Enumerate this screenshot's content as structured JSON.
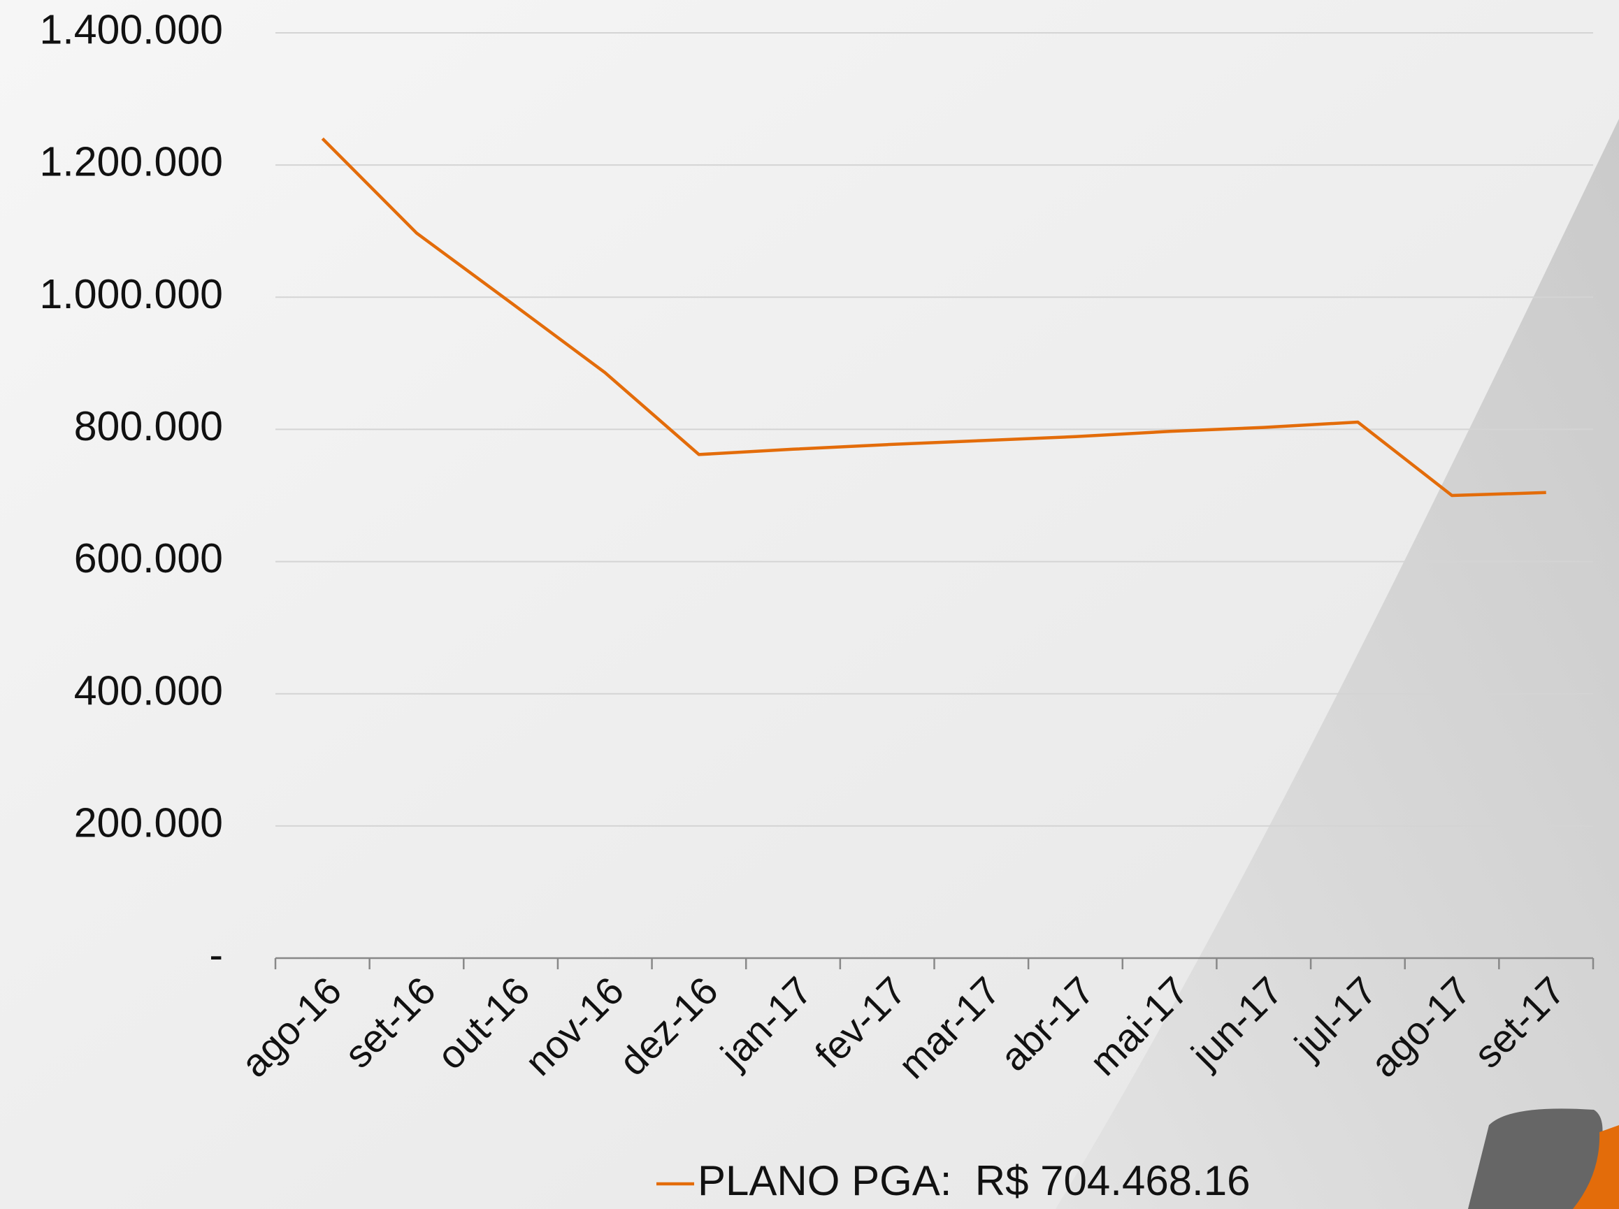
{
  "chart_data": {
    "type": "line",
    "categories": [
      "ago-16",
      "set-16",
      "out-16",
      "nov-16",
      "dez-16",
      "jan-17",
      "fev-17",
      "mar-17",
      "abr-17",
      "mai-17",
      "jun-17",
      "jul-17",
      "ago-17",
      "set-17"
    ],
    "series": [
      {
        "name": "PLANO PGA:  R$ 704.468.16",
        "color": "#e36c0a",
        "values": [
          1240000,
          1097000,
          992000,
          886000,
          762000,
          770000,
          777000,
          783000,
          789000,
          797000,
          803000,
          811000,
          700000,
          704468
        ]
      }
    ],
    "ylim": [
      0,
      1400000
    ],
    "yticks": [
      {
        "value": 0,
        "label": "-"
      },
      {
        "value": 200000,
        "label": "200.000"
      },
      {
        "value": 400000,
        "label": "400.000"
      },
      {
        "value": 600000,
        "label": "600.000"
      },
      {
        "value": 800000,
        "label": "800.000"
      },
      {
        "value": 1000000,
        "label": "1.000.000"
      },
      {
        "value": 1200000,
        "label": "1.200.000"
      },
      {
        "value": 1400000,
        "label": "1.400.000"
      }
    ],
    "grid": true,
    "legend": "bottom"
  }
}
